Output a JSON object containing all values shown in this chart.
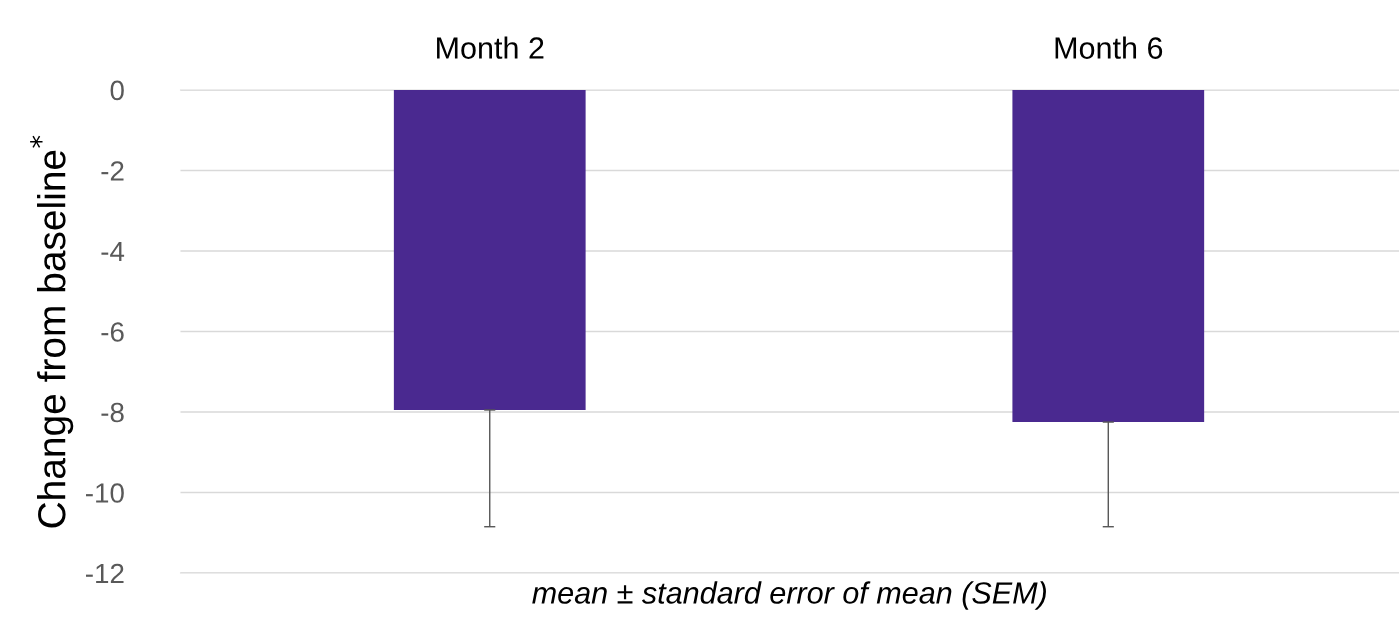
{
  "chart_data": {
    "type": "bar",
    "categories": [
      "Month 2",
      "Month 6"
    ],
    "values": [
      -7.95,
      -8.25
    ],
    "errors": [
      [
        -10.85,
        -7.95
      ],
      [
        -10.85,
        -8.25
      ]
    ],
    "color": "#4a2990",
    "ylim": [
      -12,
      0
    ],
    "yticks": [
      {
        "value": -12,
        "label": "-12"
      },
      {
        "value": -10,
        "label": "-10"
      },
      {
        "value": -8,
        "label": "-8"
      },
      {
        "value": -6,
        "label": "-6"
      },
      {
        "value": -4,
        "label": "-4"
      },
      {
        "value": -2,
        "label": "-2"
      },
      0
    ],
    "ylabel": "Change from baseline$^{*}$",
    "xlabel": "mean ± standard error of mean (SEM)",
    "grid": "y",
    "legend": false
  }
}
